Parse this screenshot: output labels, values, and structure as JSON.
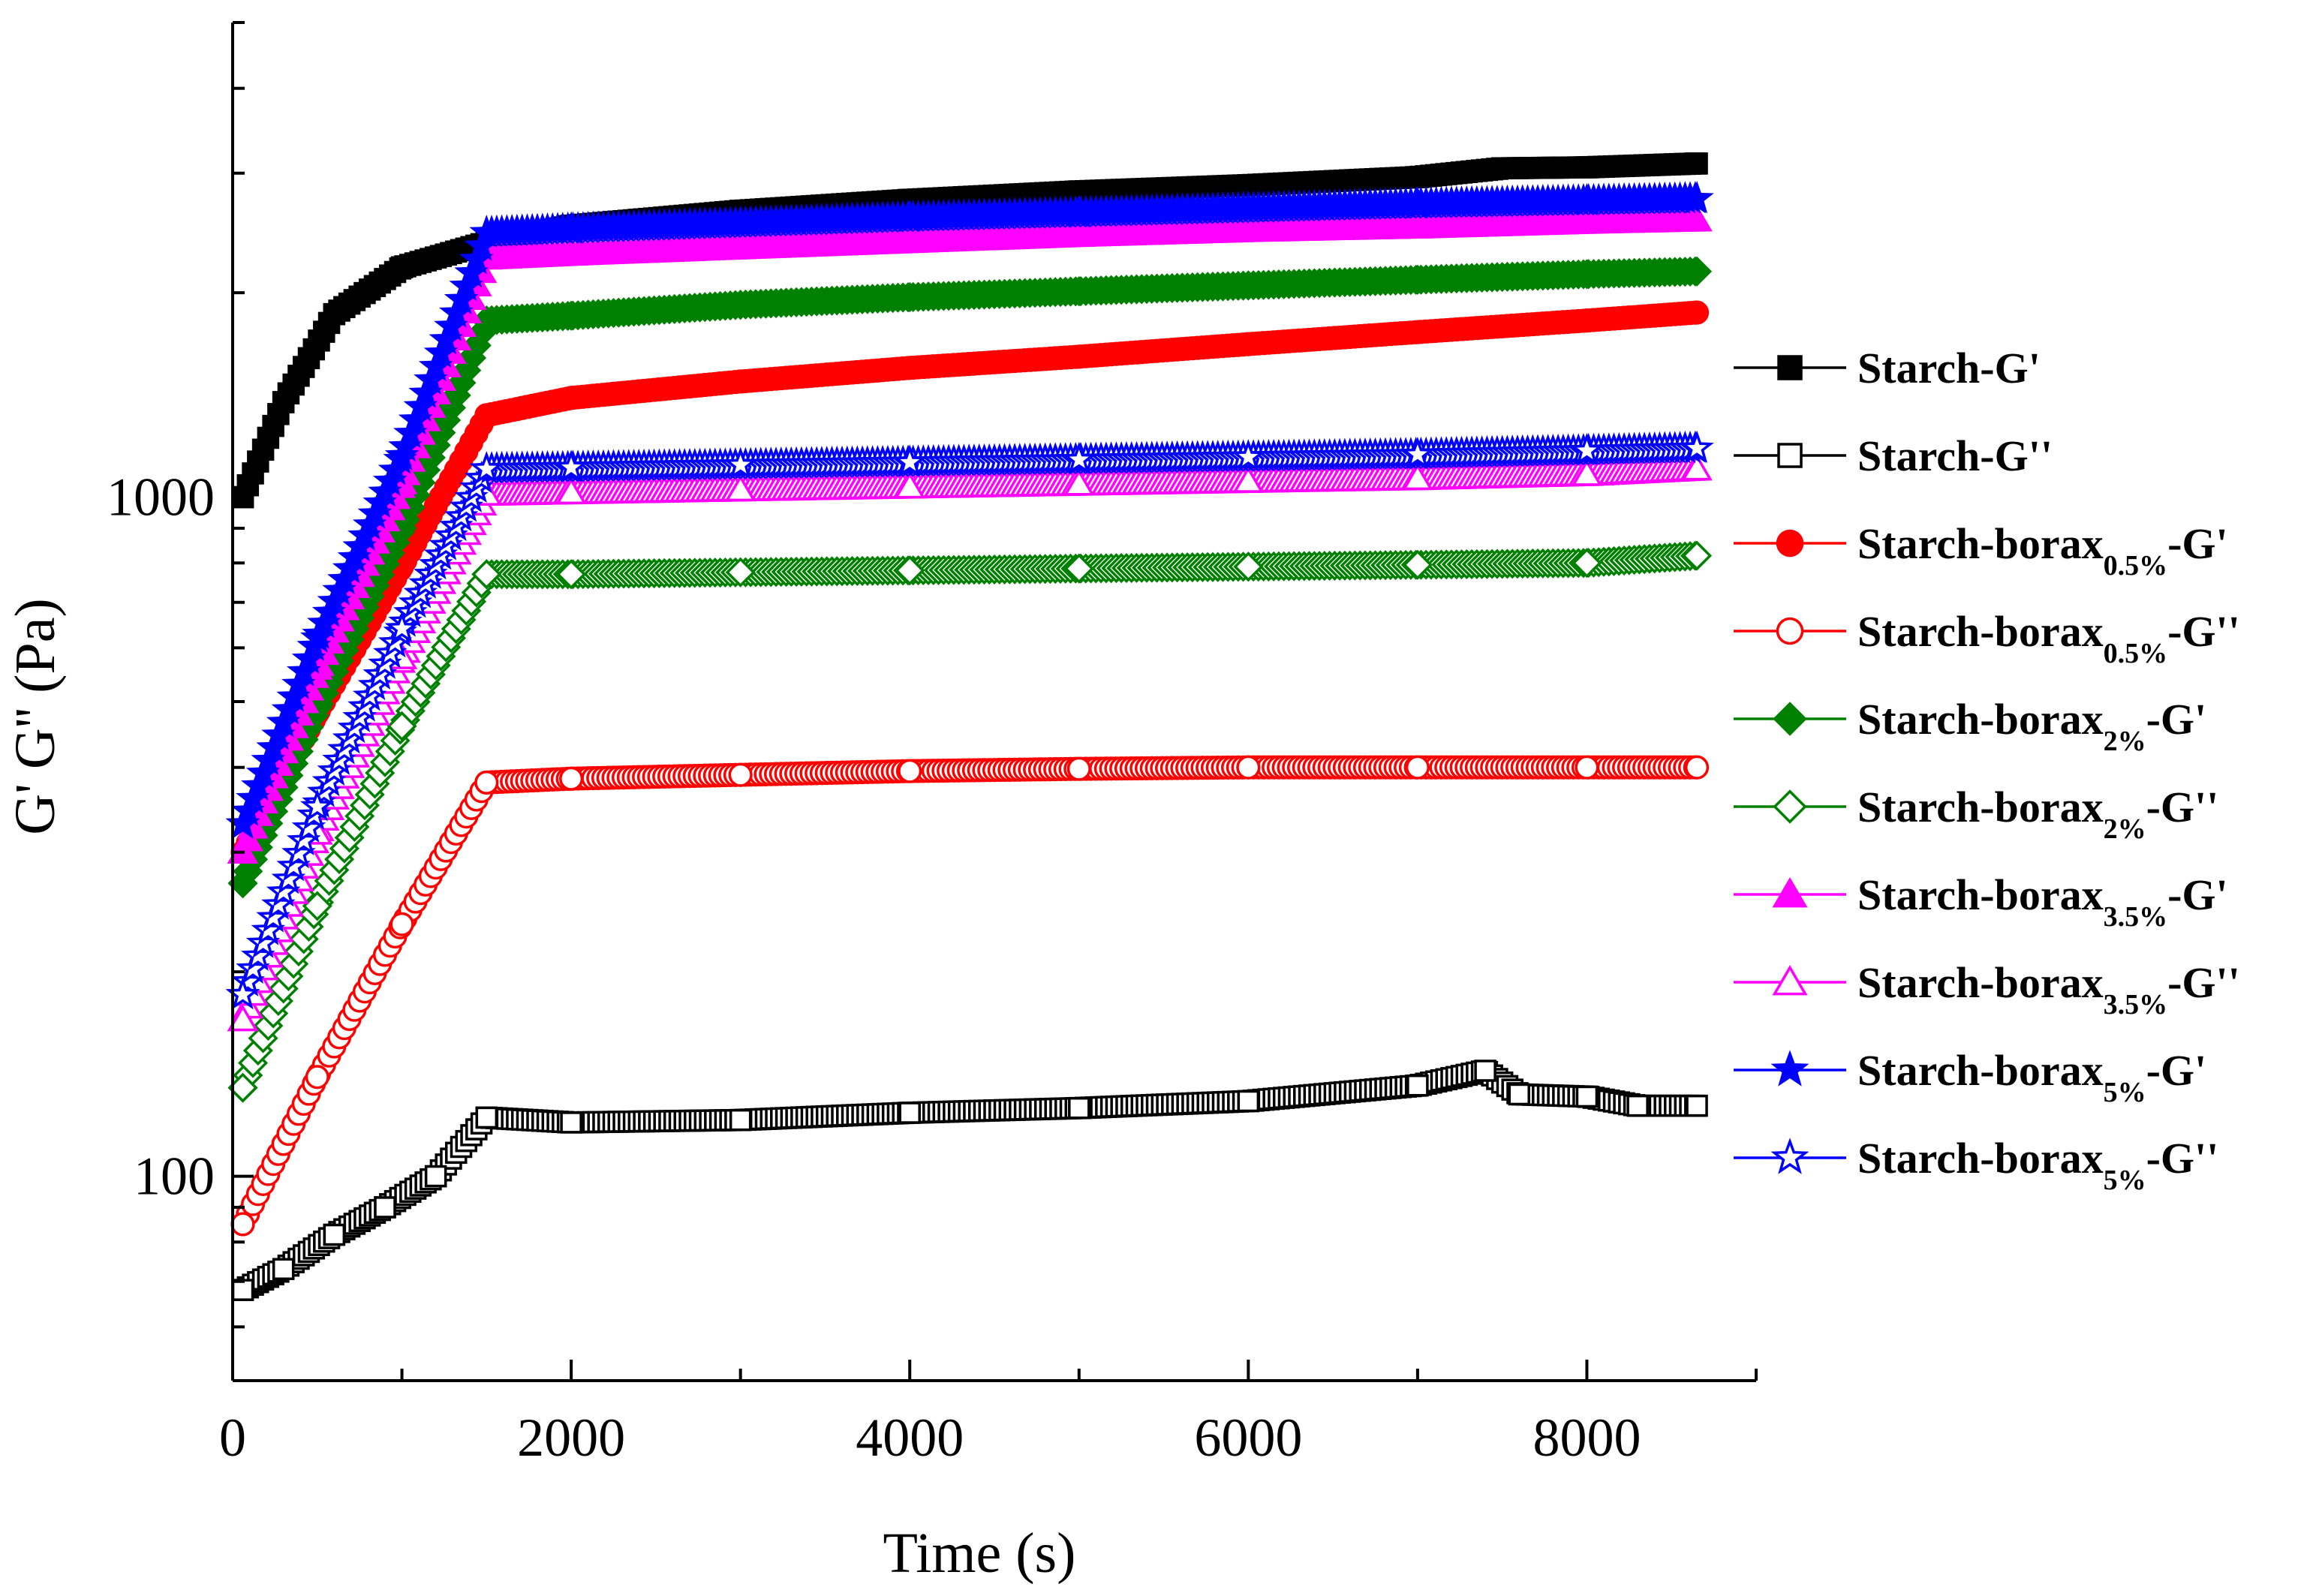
{
  "chart_data": {
    "type": "scatter",
    "title": "",
    "xlabel": "Time (s)",
    "ylabel": "G' G'' (Pa)",
    "xscale": "linear",
    "yscale": "log",
    "xlim": [
      0,
      9000
    ],
    "ylim": [
      50,
      5000
    ],
    "xticks": [
      0,
      2000,
      4000,
      6000,
      8000
    ],
    "xtick_labels": [
      "0",
      "2000",
      "4000",
      "6000",
      "8000"
    ],
    "yticks": [
      100,
      1000
    ],
    "ytick_labels": [
      "100",
      "1000"
    ],
    "legend_position": "right",
    "series": [
      {
        "name": "Starch-G'",
        "legend": {
          "base": "Starch",
          "sub": "",
          "suffix": "-G'"
        },
        "color": "#000000",
        "marker": "square",
        "filled": true,
        "x": [
          60,
          300,
          600,
          1000,
          1500,
          2000,
          3000,
          4000,
          5000,
          6000,
          7000,
          7500,
          8000,
          8650
        ],
        "y": [
          1000,
          1380,
          1860,
          2180,
          2370,
          2510,
          2640,
          2740,
          2820,
          2880,
          2960,
          3050,
          3060,
          3100
        ]
      },
      {
        "name": "Starch-G''",
        "legend": {
          "base": "Starch",
          "sub": "",
          "suffix": "-G''"
        },
        "color": "#000000",
        "marker": "square",
        "filled": false,
        "x": [
          60,
          300,
          600,
          900,
          1200,
          1500,
          2000,
          3000,
          4000,
          5000,
          6000,
          7000,
          7400,
          7600,
          8000,
          8300,
          8650
        ],
        "y": [
          68,
          73,
          82,
          90,
          100,
          122,
          120,
          121,
          124,
          126,
          129,
          136,
          143,
          132,
          131,
          127,
          127
        ]
      },
      {
        "name": "Starch-borax0.5%-G'",
        "legend": {
          "base": "Starch-borax",
          "sub": "0.5%",
          "suffix": "-G'"
        },
        "color": "#ff0000",
        "marker": "circle",
        "filled": true,
        "x": [
          60,
          500,
          1000,
          1500,
          2000,
          3000,
          4000,
          5000,
          6000,
          7000,
          8000,
          8650
        ],
        "y": [
          300,
          480,
          790,
          1320,
          1400,
          1480,
          1550,
          1610,
          1680,
          1750,
          1820,
          1870
        ]
      },
      {
        "name": "Starch-borax0.5%-G''",
        "legend": {
          "base": "Starch-borax",
          "sub": "0.5%",
          "suffix": "-G''"
        },
        "color": "#ff0000",
        "marker": "circle",
        "filled": false,
        "x": [
          60,
          500,
          1000,
          1500,
          2000,
          3000,
          4000,
          5000,
          6000,
          7000,
          8000,
          8650
        ],
        "y": [
          85,
          140,
          235,
          380,
          385,
          390,
          395,
          398,
          400,
          400,
          400,
          400
        ]
      },
      {
        "name": "Starch-borax2%-G'",
        "legend": {
          "base": "Starch-borax",
          "sub": "2%",
          "suffix": "-G'"
        },
        "color": "#008000",
        "marker": "diamond",
        "filled": true,
        "x": [
          60,
          500,
          1000,
          1500,
          2000,
          3000,
          4000,
          5000,
          6000,
          7000,
          8000,
          8650
        ],
        "y": [
          270,
          490,
          900,
          1820,
          1850,
          1920,
          1970,
          2010,
          2050,
          2090,
          2130,
          2150
        ]
      },
      {
        "name": "Starch-borax2%-G''",
        "legend": {
          "base": "Starch-borax",
          "sub": "2%",
          "suffix": "-G''"
        },
        "color": "#008000",
        "marker": "diamond",
        "filled": false,
        "x": [
          60,
          500,
          1000,
          1500,
          2000,
          3000,
          4000,
          5000,
          6000,
          7000,
          8000,
          8650
        ],
        "y": [
          135,
          250,
          460,
          770,
          770,
          775,
          780,
          785,
          790,
          795,
          800,
          820
        ]
      },
      {
        "name": "Starch-borax3.5%-G'",
        "legend": {
          "base": "Starch-borax",
          "sub": "3.5%",
          "suffix": "-G'"
        },
        "color": "#ff00ff",
        "marker": "triangle",
        "filled": true,
        "x": [
          60,
          500,
          1000,
          1500,
          2000,
          3000,
          4000,
          5000,
          6000,
          7000,
          8000,
          8650
        ],
        "y": [
          300,
          560,
          1050,
          2250,
          2280,
          2330,
          2380,
          2430,
          2470,
          2500,
          2540,
          2560
        ]
      },
      {
        "name": "Starch-borax3.5%-G''",
        "legend": {
          "base": "Starch-borax",
          "sub": "3.5%",
          "suffix": "-G''"
        },
        "color": "#ff00ff",
        "marker": "triangle",
        "filled": false,
        "x": [
          60,
          500,
          1000,
          1500,
          2000,
          3000,
          4000,
          5000,
          6000,
          7000,
          8000,
          8650
        ],
        "y": [
          170,
          320,
          580,
          1010,
          1015,
          1025,
          1035,
          1045,
          1055,
          1065,
          1080,
          1100
        ]
      },
      {
        "name": "Starch-borax5%-G'",
        "legend": {
          "base": "Starch-borax",
          "sub": "5%",
          "suffix": "-G'"
        },
        "color": "#0000ff",
        "marker": "star",
        "filled": true,
        "x": [
          60,
          500,
          1000,
          1500,
          2000,
          3000,
          4000,
          5000,
          6000,
          7000,
          8000,
          8650
        ],
        "y": [
          330,
          620,
          1150,
          2450,
          2480,
          2530,
          2580,
          2620,
          2660,
          2700,
          2730,
          2750
        ]
      },
      {
        "name": "Starch-borax5%-G''",
        "legend": {
          "base": "Starch-borax",
          "sub": "5%",
          "suffix": "-G''"
        },
        "color": "#0000ff",
        "marker": "star",
        "filled": false,
        "x": [
          60,
          500,
          1000,
          1500,
          2000,
          3000,
          4000,
          5000,
          6000,
          7000,
          8000,
          8650
        ],
        "y": [
          185,
          350,
          640,
          1100,
          1105,
          1115,
          1125,
          1135,
          1145,
          1155,
          1170,
          1180
        ]
      }
    ]
  }
}
